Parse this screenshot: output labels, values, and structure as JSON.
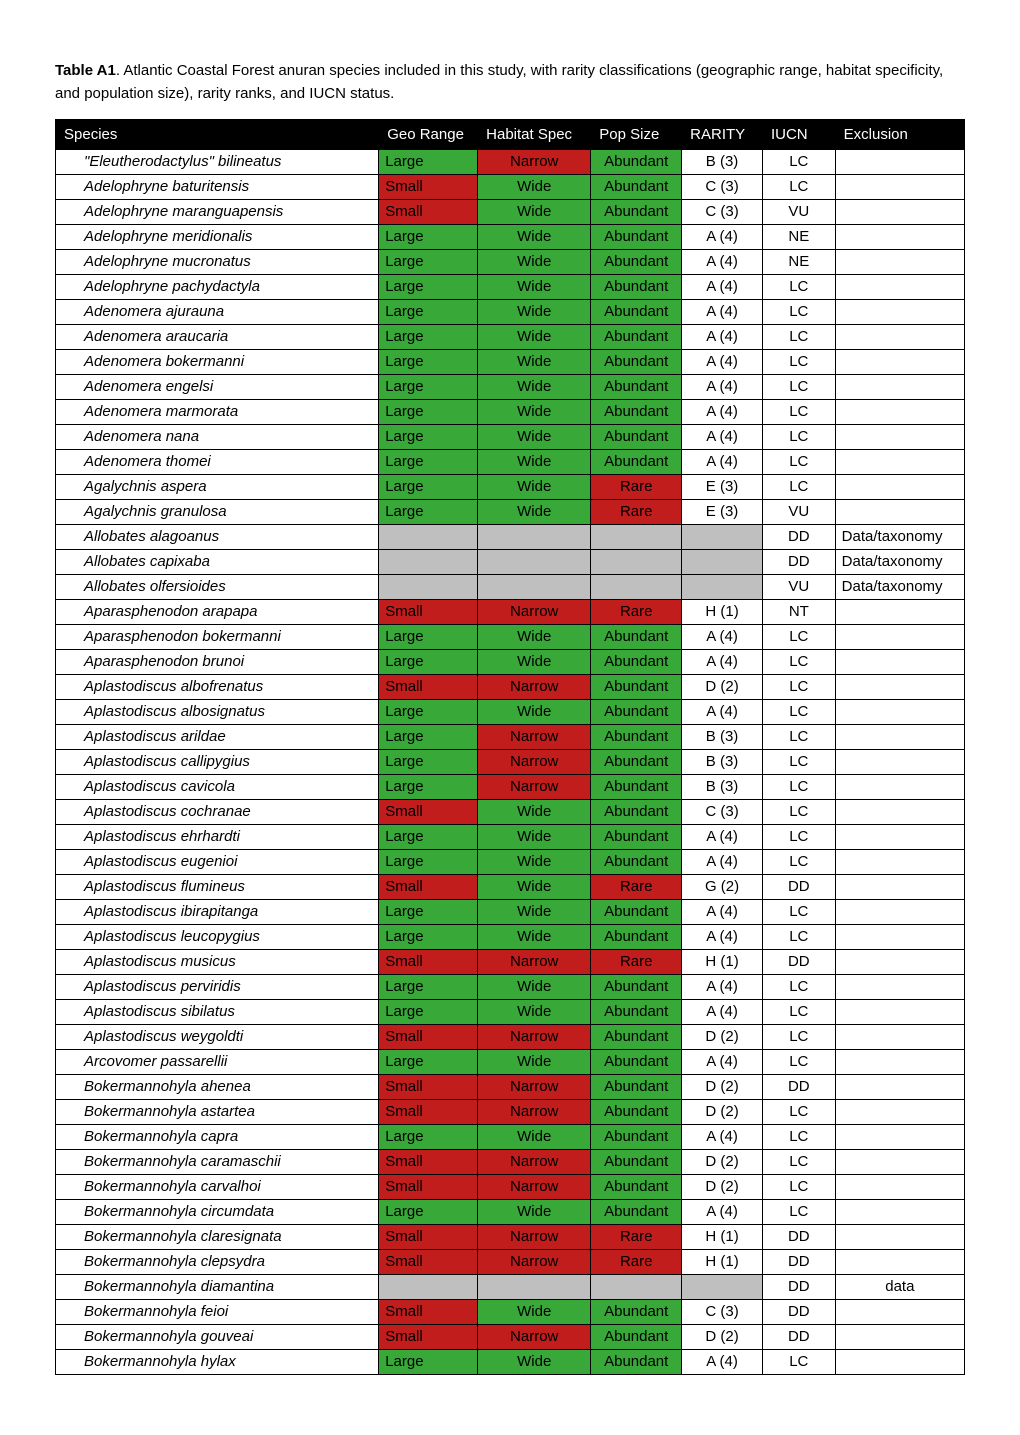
{
  "caption": {
    "label": "Table A1",
    "text": ". Atlantic Coastal Forest anuran species included in this study, with rarity classifications (geographic range, habitat specificity, and population size), rarity ranks, and IUCN status."
  },
  "colors": {
    "header_bg": "#000000",
    "header_fg": "#ffffff",
    "green": "#38a838",
    "red": "#c11d1d",
    "gray": "#bfbfbf",
    "border": "#000000"
  },
  "columns": [
    "Species",
    "Geo Range",
    "Habitat Spec",
    "Pop Size",
    "RARITY",
    "IUCN",
    "Exclusion"
  ],
  "cell_color_map": {
    "Large": "green",
    "Small": "red",
    "Wide": "green",
    "Narrow": "red",
    "Abundant": "green",
    "Rare": "red"
  },
  "rows": [
    {
      "species": "\"Eleutherodactylus\" bilineatus",
      "geo": "Large",
      "hab": "Narrow",
      "pop": "Abundant",
      "rarity": "B (3)",
      "iucn": "LC",
      "excl": ""
    },
    {
      "species": "Adelophryne baturitensis",
      "geo": "Small",
      "hab": "Wide",
      "pop": "Abundant",
      "rarity": "C (3)",
      "iucn": "LC",
      "excl": ""
    },
    {
      "species": "Adelophryne maranguapensis",
      "geo": "Small",
      "hab": "Wide",
      "pop": "Abundant",
      "rarity": "C (3)",
      "iucn": "VU",
      "excl": ""
    },
    {
      "species": "Adelophryne meridionalis",
      "geo": "Large",
      "hab": "Wide",
      "pop": "Abundant",
      "rarity": "A (4)",
      "iucn": "NE",
      "excl": ""
    },
    {
      "species": "Adelophryne mucronatus",
      "geo": "Large",
      "hab": "Wide",
      "pop": "Abundant",
      "rarity": "A (4)",
      "iucn": "NE",
      "excl": ""
    },
    {
      "species": "Adelophryne pachydactyla",
      "geo": "Large",
      "hab": "Wide",
      "pop": "Abundant",
      "rarity": "A (4)",
      "iucn": "LC",
      "excl": ""
    },
    {
      "species": "Adenomera ajurauna",
      "geo": "Large",
      "hab": "Wide",
      "pop": "Abundant",
      "rarity": "A (4)",
      "iucn": "LC",
      "excl": ""
    },
    {
      "species": "Adenomera araucaria",
      "geo": "Large",
      "hab": "Wide",
      "pop": "Abundant",
      "rarity": "A (4)",
      "iucn": "LC",
      "excl": ""
    },
    {
      "species": "Adenomera bokermanni",
      "geo": "Large",
      "hab": "Wide",
      "pop": "Abundant",
      "rarity": "A (4)",
      "iucn": "LC",
      "excl": ""
    },
    {
      "species": "Adenomera engelsi",
      "geo": "Large",
      "hab": "Wide",
      "pop": "Abundant",
      "rarity": "A (4)",
      "iucn": "LC",
      "excl": ""
    },
    {
      "species": "Adenomera marmorata",
      "geo": "Large",
      "hab": "Wide",
      "pop": "Abundant",
      "rarity": "A (4)",
      "iucn": "LC",
      "excl": ""
    },
    {
      "species": "Adenomera nana",
      "geo": "Large",
      "hab": "Wide",
      "pop": "Abundant",
      "rarity": "A (4)",
      "iucn": "LC",
      "excl": ""
    },
    {
      "species": "Adenomera thomei",
      "geo": "Large",
      "hab": "Wide",
      "pop": "Abundant",
      "rarity": "A (4)",
      "iucn": "LC",
      "excl": ""
    },
    {
      "species": "Agalychnis aspera",
      "geo": "Large",
      "hab": "Wide",
      "pop": "Rare",
      "rarity": "E (3)",
      "iucn": "LC",
      "excl": ""
    },
    {
      "species": "Agalychnis granulosa",
      "geo": "Large",
      "hab": "Wide",
      "pop": "Rare",
      "rarity": "E (3)",
      "iucn": "VU",
      "excl": ""
    },
    {
      "species": "Allobates alagoanus",
      "geo": "",
      "hab": "",
      "pop": "",
      "rarity": "",
      "iucn": "DD",
      "excl": "Data/taxonomy",
      "grayFill": true
    },
    {
      "species": "Allobates capixaba",
      "geo": "",
      "hab": "",
      "pop": "",
      "rarity": "",
      "iucn": "DD",
      "excl": "Data/taxonomy",
      "grayFill": true
    },
    {
      "species": "Allobates olfersioides",
      "geo": "",
      "hab": "",
      "pop": "",
      "rarity": "",
      "iucn": "VU",
      "excl": "Data/taxonomy",
      "grayFill": true
    },
    {
      "species": "Aparasphenodon arapapa",
      "geo": "Small",
      "hab": "Narrow",
      "pop": "Rare",
      "rarity": "H (1)",
      "iucn": "NT",
      "excl": ""
    },
    {
      "species": "Aparasphenodon bokermanni",
      "geo": "Large",
      "hab": "Wide",
      "pop": "Abundant",
      "rarity": "A (4)",
      "iucn": "LC",
      "excl": ""
    },
    {
      "species": "Aparasphenodon brunoi",
      "geo": "Large",
      "hab": "Wide",
      "pop": "Abundant",
      "rarity": "A (4)",
      "iucn": "LC",
      "excl": ""
    },
    {
      "species": "Aplastodiscus albofrenatus",
      "geo": "Small",
      "hab": "Narrow",
      "pop": "Abundant",
      "rarity": "D (2)",
      "iucn": "LC",
      "excl": ""
    },
    {
      "species": "Aplastodiscus albosignatus",
      "geo": "Large",
      "hab": "Wide",
      "pop": "Abundant",
      "rarity": "A (4)",
      "iucn": "LC",
      "excl": ""
    },
    {
      "species": "Aplastodiscus arildae",
      "geo": "Large",
      "hab": "Narrow",
      "pop": "Abundant",
      "rarity": "B (3)",
      "iucn": "LC",
      "excl": ""
    },
    {
      "species": "Aplastodiscus callipygius",
      "geo": "Large",
      "hab": "Narrow",
      "pop": "Abundant",
      "rarity": "B (3)",
      "iucn": "LC",
      "excl": ""
    },
    {
      "species": "Aplastodiscus cavicola",
      "geo": "Large",
      "hab": "Narrow",
      "pop": "Abundant",
      "rarity": "B (3)",
      "iucn": "LC",
      "excl": ""
    },
    {
      "species": "Aplastodiscus cochranae",
      "geo": "Small",
      "hab": "Wide",
      "pop": "Abundant",
      "rarity": "C (3)",
      "iucn": "LC",
      "excl": ""
    },
    {
      "species": "Aplastodiscus ehrhardti",
      "geo": "Large",
      "hab": "Wide",
      "pop": "Abundant",
      "rarity": "A (4)",
      "iucn": "LC",
      "excl": ""
    },
    {
      "species": "Aplastodiscus eugenioi",
      "geo": "Large",
      "hab": "Wide",
      "pop": "Abundant",
      "rarity": "A (4)",
      "iucn": "LC",
      "excl": ""
    },
    {
      "species": "Aplastodiscus flumineus",
      "geo": "Small",
      "hab": "Wide",
      "pop": "Rare",
      "rarity": "G (2)",
      "iucn": "DD",
      "excl": ""
    },
    {
      "species": "Aplastodiscus ibirapitanga",
      "geo": "Large",
      "hab": "Wide",
      "pop": "Abundant",
      "rarity": "A (4)",
      "iucn": "LC",
      "excl": ""
    },
    {
      "species": "Aplastodiscus leucopygius",
      "geo": "Large",
      "hab": "Wide",
      "pop": "Abundant",
      "rarity": "A (4)",
      "iucn": "LC",
      "excl": ""
    },
    {
      "species": "Aplastodiscus musicus",
      "geo": "Small",
      "hab": "Narrow",
      "pop": "Rare",
      "rarity": "H (1)",
      "iucn": "DD",
      "excl": ""
    },
    {
      "species": "Aplastodiscus perviridis",
      "geo": "Large",
      "hab": "Wide",
      "pop": "Abundant",
      "rarity": "A (4)",
      "iucn": "LC",
      "excl": ""
    },
    {
      "species": "Aplastodiscus sibilatus",
      "geo": "Large",
      "hab": "Wide",
      "pop": "Abundant",
      "rarity": "A (4)",
      "iucn": "LC",
      "excl": ""
    },
    {
      "species": "Aplastodiscus weygoldti",
      "geo": "Small",
      "hab": "Narrow",
      "pop": "Abundant",
      "rarity": "D (2)",
      "iucn": "LC",
      "excl": ""
    },
    {
      "species": "Arcovomer passarellii",
      "geo": "Large",
      "hab": "Wide",
      "pop": "Abundant",
      "rarity": "A (4)",
      "iucn": "LC",
      "excl": ""
    },
    {
      "species": "Bokermannohyla ahenea",
      "geo": "Small",
      "hab": "Narrow",
      "pop": "Abundant",
      "rarity": "D (2)",
      "iucn": "DD",
      "excl": ""
    },
    {
      "species": "Bokermannohyla astartea",
      "geo": "Small",
      "hab": "Narrow",
      "pop": "Abundant",
      "rarity": "D (2)",
      "iucn": "LC",
      "excl": ""
    },
    {
      "species": "Bokermannohyla capra",
      "geo": "Large",
      "hab": "Wide",
      "pop": "Abundant",
      "rarity": "A (4)",
      "iucn": "LC",
      "excl": ""
    },
    {
      "species": "Bokermannohyla caramaschii",
      "geo": "Small",
      "hab": "Narrow",
      "pop": "Abundant",
      "rarity": "D (2)",
      "iucn": "LC",
      "excl": ""
    },
    {
      "species": "Bokermannohyla carvalhoi",
      "geo": "Small",
      "hab": "Narrow",
      "pop": "Abundant",
      "rarity": "D (2)",
      "iucn": "LC",
      "excl": ""
    },
    {
      "species": "Bokermannohyla circumdata",
      "geo": "Large",
      "hab": "Wide",
      "pop": "Abundant",
      "rarity": "A (4)",
      "iucn": "LC",
      "excl": ""
    },
    {
      "species": "Bokermannohyla claresignata",
      "geo": "Small",
      "hab": "Narrow",
      "pop": "Rare",
      "rarity": "H (1)",
      "iucn": "DD",
      "excl": ""
    },
    {
      "species": "Bokermannohyla clepsydra",
      "geo": "Small",
      "hab": "Narrow",
      "pop": "Rare",
      "rarity": "H (1)",
      "iucn": "DD",
      "excl": ""
    },
    {
      "species": "Bokermannohyla diamantina",
      "geo": "",
      "hab": "",
      "pop": "",
      "rarity": "",
      "iucn": "DD",
      "excl": "data",
      "grayFill": true,
      "exclCenter": true
    },
    {
      "species": "Bokermannohyla feioi",
      "geo": "Small",
      "hab": "Wide",
      "pop": "Abundant",
      "rarity": "C (3)",
      "iucn": "DD",
      "excl": ""
    },
    {
      "species": "Bokermannohyla gouveai",
      "geo": "Small",
      "hab": "Narrow",
      "pop": "Abundant",
      "rarity": "D (2)",
      "iucn": "DD",
      "excl": ""
    },
    {
      "species": "Bokermannohyla hylax",
      "geo": "Large",
      "hab": "Wide",
      "pop": "Abundant",
      "rarity": "A (4)",
      "iucn": "LC",
      "excl": ""
    }
  ]
}
